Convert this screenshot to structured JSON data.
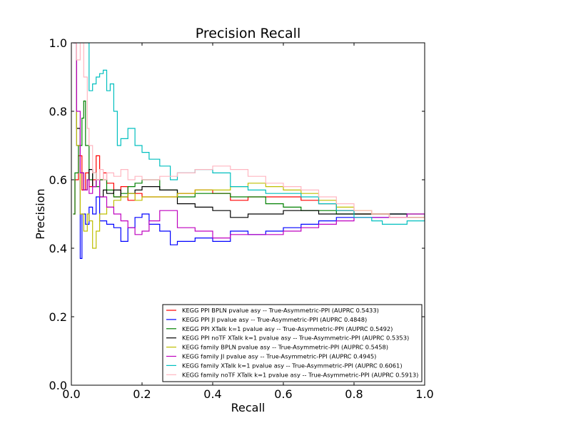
{
  "chart_data": {
    "type": "line",
    "title": "Precision Recall",
    "xlabel": "Recall",
    "ylabel": "Precision",
    "xlim": [
      0.0,
      1.0
    ],
    "ylim": [
      0.0,
      1.0
    ],
    "xticks": [
      "0.0",
      "0.2",
      "0.4",
      "0.6",
      "0.8",
      "1.0"
    ],
    "yticks": [
      "0.0",
      "0.2",
      "0.4",
      "0.6",
      "0.8",
      "1.0"
    ],
    "grid": false,
    "legend_position": "lower-right",
    "series": [
      {
        "name": "KEGG PPI BPLN pvalue asy -- True-Asymmetric-PPI (AUPRC 0.5433)",
        "color": "#ff0000",
        "x": [
          0.005,
          0.01,
          0.02,
          0.03,
          0.04,
          0.05,
          0.06,
          0.07,
          0.08,
          0.09,
          0.1,
          0.12,
          0.14,
          0.16,
          0.18,
          0.2,
          0.25,
          0.3,
          0.35,
          0.4,
          0.45,
          0.5,
          0.55,
          0.6,
          0.65,
          0.7,
          0.75,
          0.8,
          0.85,
          0.9,
          0.95,
          1.0
        ],
        "y": [
          0.5,
          0.6,
          0.67,
          0.57,
          0.62,
          0.58,
          0.6,
          0.67,
          0.6,
          0.62,
          0.59,
          0.55,
          0.58,
          0.54,
          0.56,
          0.55,
          0.55,
          0.56,
          0.57,
          0.56,
          0.54,
          0.55,
          0.55,
          0.55,
          0.54,
          0.53,
          0.51,
          0.5,
          0.5,
          0.49,
          0.49,
          0.49
        ]
      },
      {
        "name": "KEGG PPI JI pvalue asy -- True-Asymmetric-PPI (AUPRC 0.4848)",
        "color": "#0000ff",
        "x": [
          0.005,
          0.015,
          0.025,
          0.03,
          0.04,
          0.05,
          0.06,
          0.07,
          0.08,
          0.1,
          0.12,
          0.14,
          0.16,
          0.18,
          0.2,
          0.22,
          0.25,
          0.28,
          0.3,
          0.35,
          0.4,
          0.45,
          0.5,
          0.55,
          0.6,
          0.65,
          0.7,
          0.75,
          0.8,
          0.85,
          0.9,
          0.95,
          1.0
        ],
        "y": [
          1.0,
          0.7,
          0.37,
          0.5,
          0.47,
          0.52,
          0.5,
          0.55,
          0.48,
          0.47,
          0.46,
          0.42,
          0.46,
          0.49,
          0.5,
          0.47,
          0.45,
          0.41,
          0.42,
          0.43,
          0.42,
          0.45,
          0.44,
          0.45,
          0.46,
          0.47,
          0.48,
          0.49,
          0.49,
          0.49,
          0.5,
          0.49,
          0.49
        ]
      },
      {
        "name": "KEGG PPI XTalk k=1 pvalue asy -- True-Asymmetric-PPI (AUPRC 0.5492)",
        "color": "#008000",
        "x": [
          0.005,
          0.01,
          0.02,
          0.03,
          0.035,
          0.04,
          0.05,
          0.06,
          0.07,
          0.08,
          0.1,
          0.12,
          0.14,
          0.16,
          0.18,
          0.2,
          0.25,
          0.3,
          0.35,
          0.4,
          0.45,
          0.5,
          0.55,
          0.6,
          0.65,
          0.7,
          0.75,
          0.8,
          0.85,
          0.9,
          0.95,
          1.0
        ],
        "y": [
          0.5,
          0.62,
          0.7,
          0.78,
          0.83,
          0.7,
          0.6,
          0.62,
          0.58,
          0.6,
          0.57,
          0.55,
          0.56,
          0.58,
          0.59,
          0.6,
          0.57,
          0.55,
          0.56,
          0.56,
          0.55,
          0.55,
          0.53,
          0.52,
          0.51,
          0.51,
          0.5,
          0.5,
          0.5,
          0.5,
          0.5,
          0.49
        ]
      },
      {
        "name": "KEGG PPI noTF XTalk k=1 pvalue asy -- True-Asymmetric-PPI (AUPRC 0.5353)",
        "color": "#000000",
        "x": [
          0.005,
          0.015,
          0.025,
          0.035,
          0.045,
          0.05,
          0.06,
          0.07,
          0.08,
          0.09,
          0.1,
          0.12,
          0.14,
          0.16,
          0.18,
          0.2,
          0.25,
          0.3,
          0.35,
          0.4,
          0.45,
          0.5,
          0.55,
          0.6,
          0.65,
          0.7,
          0.75,
          0.8,
          0.85,
          0.9,
          0.95,
          1.0
        ],
        "y": [
          1.0,
          0.75,
          0.62,
          0.57,
          0.6,
          0.63,
          0.58,
          0.6,
          0.55,
          0.57,
          0.56,
          0.57,
          0.55,
          0.56,
          0.57,
          0.58,
          0.57,
          0.53,
          0.52,
          0.51,
          0.49,
          0.5,
          0.5,
          0.51,
          0.51,
          0.5,
          0.5,
          0.5,
          0.5,
          0.5,
          0.49,
          0.49
        ]
      },
      {
        "name": "KEGG family BPLN pvalue asy -- True-Asymmetric-PPI (AUPRC 0.5458)",
        "color": "#bfbf00",
        "x": [
          0.005,
          0.015,
          0.025,
          0.035,
          0.045,
          0.05,
          0.06,
          0.07,
          0.08,
          0.1,
          0.12,
          0.14,
          0.16,
          0.18,
          0.2,
          0.25,
          0.3,
          0.35,
          0.4,
          0.45,
          0.5,
          0.55,
          0.6,
          0.65,
          0.7,
          0.75,
          0.8,
          0.85,
          0.9,
          0.95,
          1.0
        ],
        "y": [
          1.0,
          0.7,
          0.5,
          0.45,
          0.5,
          0.48,
          0.4,
          0.45,
          0.5,
          0.52,
          0.54,
          0.55,
          0.56,
          0.54,
          0.55,
          0.55,
          0.56,
          0.57,
          0.57,
          0.58,
          0.59,
          0.58,
          0.57,
          0.56,
          0.54,
          0.52,
          0.51,
          0.5,
          0.49,
          0.49,
          0.48
        ]
      },
      {
        "name": "KEGG family JI pvalue asy -- True-Asymmetric-PPI (AUPRC 0.4945)",
        "color": "#bf00bf",
        "x": [
          0.005,
          0.015,
          0.025,
          0.035,
          0.045,
          0.05,
          0.06,
          0.07,
          0.08,
          0.1,
          0.12,
          0.14,
          0.16,
          0.18,
          0.2,
          0.22,
          0.25,
          0.3,
          0.35,
          0.4,
          0.45,
          0.5,
          0.55,
          0.6,
          0.65,
          0.7,
          0.75,
          0.8,
          0.85,
          0.9,
          0.95,
          1.0
        ],
        "y": [
          1.0,
          0.8,
          0.62,
          0.57,
          0.6,
          0.56,
          0.58,
          0.6,
          0.55,
          0.52,
          0.5,
          0.48,
          0.46,
          0.44,
          0.45,
          0.48,
          0.51,
          0.46,
          0.45,
          0.43,
          0.44,
          0.44,
          0.44,
          0.45,
          0.46,
          0.47,
          0.48,
          0.49,
          0.49,
          0.49,
          0.5,
          0.49
        ]
      },
      {
        "name": "KEGG family XTalk k=1 pvalue asy -- True-Asymmetric-PPI (AUPRC 0.6061)",
        "color": "#00bfbf",
        "x": [
          0.01,
          0.03,
          0.04,
          0.05,
          0.06,
          0.07,
          0.08,
          0.09,
          0.1,
          0.11,
          0.12,
          0.13,
          0.14,
          0.16,
          0.18,
          0.2,
          0.22,
          0.25,
          0.28,
          0.3,
          0.35,
          0.4,
          0.45,
          0.5,
          0.55,
          0.6,
          0.65,
          0.7,
          0.75,
          0.8,
          0.85,
          0.88,
          0.9,
          0.95,
          1.0
        ],
        "y": [
          1.0,
          1.0,
          1.0,
          0.86,
          0.88,
          0.9,
          0.91,
          0.92,
          0.86,
          0.88,
          0.8,
          0.7,
          0.72,
          0.75,
          0.7,
          0.68,
          0.66,
          0.64,
          0.6,
          0.62,
          0.63,
          0.62,
          0.58,
          0.57,
          0.56,
          0.56,
          0.55,
          0.53,
          0.51,
          0.49,
          0.48,
          0.47,
          0.47,
          0.48,
          0.48
        ]
      },
      {
        "name": "KEGG family noTF XTalk k=1 pvalue asy -- True-Asymmetric-PPI (AUPRC 0.5913)",
        "color": "#ffb6c1",
        "x": [
          0.005,
          0.015,
          0.025,
          0.035,
          0.045,
          0.05,
          0.06,
          0.07,
          0.08,
          0.09,
          0.1,
          0.12,
          0.14,
          0.16,
          0.18,
          0.2,
          0.25,
          0.3,
          0.35,
          0.4,
          0.45,
          0.5,
          0.55,
          0.6,
          0.65,
          0.7,
          0.75,
          0.8,
          0.85,
          0.9,
          0.95,
          1.0
        ],
        "y": [
          1.0,
          0.95,
          1.0,
          0.9,
          0.75,
          0.7,
          0.62,
          0.6,
          0.63,
          0.6,
          0.62,
          0.61,
          0.63,
          0.6,
          0.61,
          0.6,
          0.61,
          0.62,
          0.63,
          0.64,
          0.63,
          0.61,
          0.59,
          0.58,
          0.57,
          0.55,
          0.53,
          0.51,
          0.5,
          0.49,
          0.49,
          0.48
        ]
      }
    ]
  }
}
